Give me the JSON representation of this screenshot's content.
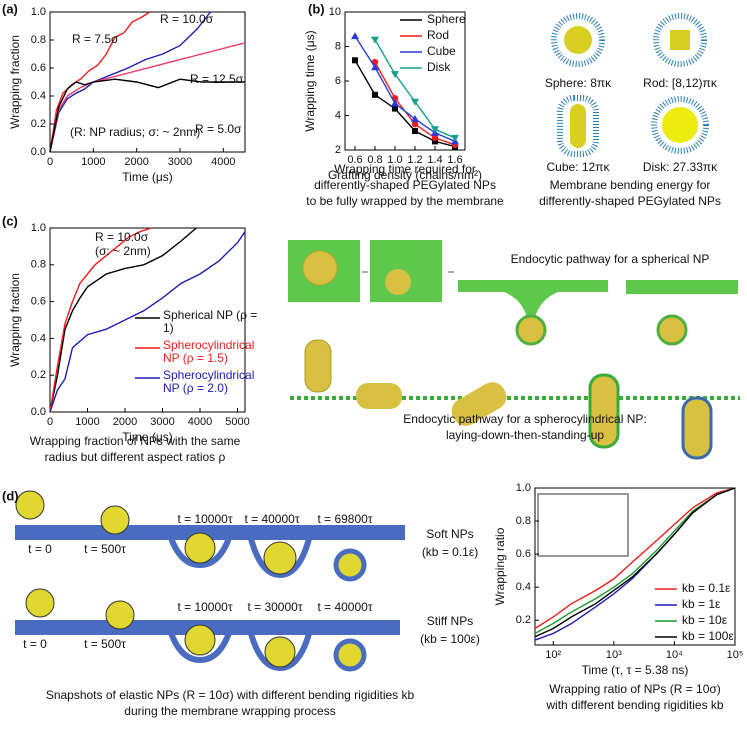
{
  "panel_labels": [
    "(a)",
    "(b)",
    "(c)",
    "(d)"
  ],
  "chart_data": [
    {
      "type": "line",
      "x_label": "Time (μs)",
      "y_label": "Wrapping fraction",
      "xlim": [
        0,
        4500
      ],
      "ylim": [
        0,
        1
      ],
      "xticks": [
        0,
        1000,
        2000,
        3000,
        4000
      ],
      "yticks": [
        {
          "value": 0,
          "label": "0.0"
        },
        0.2,
        0.4,
        0.6,
        0.8,
        {
          "value": 1,
          "label": "1.0"
        }
      ],
      "annotations": [
        "(R: NP radius; σ: ~ 2nm)"
      ],
      "series": [
        {
          "name": "R = 7.5σ",
          "color": "#ee1c1c",
          "x": [
            0,
            150,
            300,
            500,
            700,
            900,
            1100,
            1300,
            1500,
            1700,
            1900,
            2100,
            2300
          ],
          "values": [
            0,
            0.3,
            0.42,
            0.48,
            0.52,
            0.58,
            0.62,
            0.7,
            0.82,
            0.85,
            0.93,
            0.96,
            1.0
          ]
        },
        {
          "name": "R = 10.0σ",
          "color": "#1c1cb4",
          "x": [
            0,
            200,
            400,
            600,
            800,
            1000,
            1400,
            1800,
            2200,
            2600,
            3000,
            3400,
            3700
          ],
          "values": [
            0,
            0.28,
            0.38,
            0.42,
            0.45,
            0.5,
            0.55,
            0.6,
            0.66,
            0.7,
            0.76,
            0.88,
            1.0
          ]
        },
        {
          "name": "R = 12.5σ",
          "color": "#ee3a6a",
          "x": [
            0,
            200,
            400,
            700,
            1000,
            1500,
            2000,
            2500,
            3000,
            3500,
            4000,
            4500
          ],
          "values": [
            0,
            0.3,
            0.4,
            0.46,
            0.5,
            0.54,
            0.58,
            0.62,
            0.66,
            0.7,
            0.74,
            0.78
          ]
        },
        {
          "name": "R = 5.0σ",
          "color": "#000000",
          "x": [
            0,
            200,
            400,
            600,
            800,
            1000,
            1500,
            2000,
            2500,
            3000,
            3500,
            4000,
            4500
          ],
          "values": [
            0,
            0.32,
            0.45,
            0.5,
            0.48,
            0.5,
            0.52,
            0.5,
            0.46,
            0.52,
            0.5,
            0.5,
            0.5
          ]
        }
      ]
    },
    {
      "type": "line",
      "x_label": "Grafting density (chains/nm²)",
      "y_label": "Wrapping time (μs)",
      "x": [
        0.6,
        0.8,
        1.0,
        1.2,
        1.4,
        1.6
      ],
      "xlim": [
        0.5,
        1.7
      ],
      "ylim": [
        2,
        10
      ],
      "xticks": [
        0.6,
        0.8,
        {
          "value": 1,
          "label": "1.0"
        },
        1.2,
        1.4,
        1.6
      ],
      "yticks": [
        2,
        4,
        6,
        8,
        10
      ],
      "legend": "upper right",
      "series": [
        {
          "name": "Sphere",
          "color": "#000000",
          "marker": "square",
          "values": [
            7.2,
            5.2,
            4.4,
            3.1,
            2.5,
            2.2
          ]
        },
        {
          "name": "Rod",
          "color": "#ee1c1c",
          "marker": "circle",
          "values": [
            null,
            7.1,
            5.0,
            3.5,
            2.7,
            2.3
          ]
        },
        {
          "name": "Cube",
          "color": "#2a3cd8",
          "marker": "triangle",
          "values": [
            8.6,
            6.8,
            4.7,
            3.8,
            3.0,
            2.5
          ]
        },
        {
          "name": "Disk",
          "color": "#18a08c",
          "marker": "triangle-down",
          "values": [
            null,
            8.4,
            6.4,
            4.8,
            3.2,
            2.7
          ]
        }
      ]
    },
    {
      "type": "line",
      "x_label": "Time (μs)",
      "y_label": "Wrapping fraction",
      "xlim": [
        0,
        5200
      ],
      "ylim": [
        0,
        1
      ],
      "xticks": [
        0,
        1000,
        2000,
        3000,
        4000,
        5000
      ],
      "yticks": [
        {
          "value": 0,
          "label": "0.0"
        },
        0.2,
        0.4,
        0.6,
        0.8,
        {
          "value": 1,
          "label": "1.0"
        }
      ],
      "annotations": [
        "R = 10.0σ",
        "(σ: ~ 2nm)"
      ],
      "legend": "right",
      "series": [
        {
          "name": "Spherical NP (ρ = 1)",
          "color": "#000000",
          "x": [
            0,
            200,
            400,
            600,
            800,
            1000,
            1500,
            2000,
            2500,
            3000,
            3500,
            3900
          ],
          "values": [
            0,
            0.2,
            0.45,
            0.55,
            0.62,
            0.68,
            0.75,
            0.78,
            0.8,
            0.85,
            0.93,
            1.0
          ]
        },
        {
          "name": "Spherocylindrical NP (ρ = 1.5)",
          "color": "#ee1c1c",
          "x": [
            0,
            200,
            400,
            600,
            800,
            1000,
            1200,
            1500,
            1800,
            2100,
            2400,
            2700
          ],
          "values": [
            0,
            0.25,
            0.48,
            0.6,
            0.7,
            0.75,
            0.8,
            0.85,
            0.9,
            0.95,
            0.98,
            1.0
          ]
        },
        {
          "name": "Spherocylindrical NP (ρ = 2.0)",
          "color": "#1c1cb4",
          "x": [
            0,
            200,
            400,
            600,
            1000,
            1500,
            2000,
            2500,
            3000,
            3500,
            4000,
            4500,
            5000,
            5200
          ],
          "values": [
            0,
            0.12,
            0.18,
            0.35,
            0.42,
            0.45,
            0.5,
            0.55,
            0.62,
            0.7,
            0.75,
            0.82,
            0.92,
            0.98
          ]
        }
      ]
    },
    {
      "type": "line",
      "x_label": "Time (τ, τ = 5.38 ns)",
      "y_label": "Wrapping ratio",
      "log_x": true,
      "x": [
        50,
        100,
        200,
        500,
        1000,
        2000,
        5000,
        10000,
        20000,
        50000,
        100000
      ],
      "xlim": [
        50,
        100000
      ],
      "ylim": [
        0.05,
        1
      ],
      "xticks": [
        {
          "value": 100,
          "label": "10²"
        },
        {
          "value": 1000,
          "label": "10³"
        },
        {
          "value": 10000,
          "label": "10⁴"
        },
        {
          "value": 100000,
          "label": "10⁵"
        }
      ],
      "yticks": [
        0.2,
        0.4,
        0.6,
        0.8,
        {
          "value": 1,
          "label": "1.0"
        }
      ],
      "legend": "lower right",
      "series": [
        {
          "name": "kb = 0.1ε",
          "color": "#ee1c1c",
          "values": [
            0.15,
            0.22,
            0.3,
            0.38,
            0.45,
            0.55,
            0.68,
            0.78,
            0.88,
            0.97,
            1.0
          ]
        },
        {
          "name": "kb = 1ε",
          "color": "#1c1cb4",
          "values": [
            0.08,
            0.12,
            0.18,
            0.28,
            0.36,
            0.45,
            0.6,
            0.72,
            0.85,
            0.96,
            1.0
          ]
        },
        {
          "name": "kb = 10ε",
          "color": "#1a9a2a",
          "values": [
            0.12,
            0.18,
            0.25,
            0.33,
            0.4,
            0.48,
            0.62,
            0.74,
            0.86,
            0.96,
            1.0
          ]
        },
        {
          "name": "kb = 100ε",
          "color": "#000000",
          "values": [
            0.1,
            0.15,
            0.22,
            0.3,
            0.38,
            0.46,
            0.6,
            0.72,
            0.85,
            0.96,
            1.0
          ]
        }
      ]
    }
  ],
  "captions": {
    "b_plot": [
      "Wrapping time required for",
      "differently-shaped PEGylated NPs",
      "to be fully wrapped by the membrane"
    ],
    "b_images": [
      "Membrane bending energy for",
      "differently-shaped PEGylated NPs"
    ],
    "c_plot": [
      "Wrapping fraction of NPs with the same",
      "radius but different aspect ratios ρ"
    ],
    "d_images": [
      "Snapshots of elastic NPs (R = 10σ) with different bending rigidities kb",
      "during the membrane wrapping process"
    ],
    "d_plot": [
      "Wrapping ratio of NPs (R = 10σ)",
      "with different bending rigidities kb"
    ]
  },
  "images": {
    "b_shapes": [
      "Sphere: 8πκ",
      "Rod: [8,12)πκ",
      "Cube: 12πκ",
      "Disk: 27.33πκ"
    ],
    "c_sphere_title": "Endocytic pathway for a spherical NP",
    "c_rod_title": [
      "Endocytic pathway for a spherocylindrical NP:",
      "laying-down-then-standing-up"
    ],
    "d_soft_times": [
      "t = 0",
      "t = 500τ",
      "t = 10000τ",
      "t = 40000τ",
      "t = 69800τ"
    ],
    "d_soft_label": [
      "Soft NPs",
      "(kb = 0.1ε)"
    ],
    "d_stiff_times": [
      "t = 0",
      "t = 500τ",
      "t = 10000τ",
      "t = 30000τ",
      "t = 40000τ"
    ],
    "d_stiff_label": [
      "Stiff NPs",
      "(kb = 100ε)"
    ]
  }
}
